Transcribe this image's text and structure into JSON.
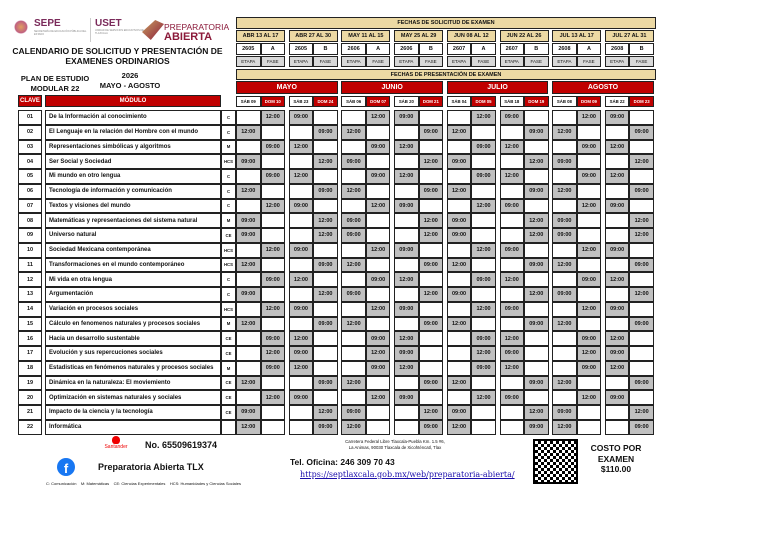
{
  "logos": {
    "sepe": "SEPE",
    "sepe_sub": "SECRETARÍA DE EDUCACIÓN PÚBLICA DEL ESTADO",
    "uset": "USET",
    "uset_sub": "UNIDAD DE SERVICIOS EDUCATIVOS DE TLAXCALA",
    "prep_top": "PREPARATORIA",
    "prep_bottom": "ABIERTA"
  },
  "header": {
    "title_line1": "CALENDARIO DE SOLICITUD Y PRESENTACIÓN DE",
    "title_line2": "EXAMENES ORDINARIOS",
    "plan_line1": "PLAN DE ESTUDIO",
    "plan_line2": "MODULAR 22",
    "year": "2026",
    "period": "MAYO - AGOSTO"
  },
  "solicitud": {
    "title": "FECHAS DE SOLICITUD DE EXAMEN",
    "etapa_label": "ETAPA",
    "fase_label": "FASE",
    "periods": [
      {
        "dates": "ABR 13 AL 17",
        "etapa": "2605",
        "fase": "A"
      },
      {
        "dates": "ABR 27 AL 30",
        "etapa": "2605",
        "fase": "B"
      },
      {
        "dates": "MAY 11 AL 15",
        "etapa": "2606",
        "fase": "A"
      },
      {
        "dates": "MAY 25 AL 29",
        "etapa": "2606",
        "fase": "B"
      },
      {
        "dates": "JUN 08 AL 12",
        "etapa": "2607",
        "fase": "A"
      },
      {
        "dates": "JUN 22 AL 26",
        "etapa": "2607",
        "fase": "B"
      },
      {
        "dates": "JUL 13 AL 17",
        "etapa": "2608",
        "fase": "A"
      },
      {
        "dates": "JUL 27 AL 31",
        "etapa": "2608",
        "fase": "B"
      }
    ]
  },
  "presentacion": {
    "title": "FECHAS DE PRESENTACIÓN DE EXAMEN",
    "months": [
      {
        "name": "MAYO",
        "days": [
          "SÁB 09",
          "DOM 10",
          "SÁB 23",
          "DOM 24"
        ]
      },
      {
        "name": "JUNIO",
        "days": [
          "SÁB 06",
          "DOM 07",
          "SÁB 20",
          "DOM 21"
        ]
      },
      {
        "name": "JULIO",
        "days": [
          "SÁB 04",
          "DOM 05",
          "SÁB 18",
          "DOM 19"
        ]
      },
      {
        "name": "AGOSTO",
        "days": [
          "SÁB 08",
          "DOM 09",
          "SÁB 22",
          "DOM 23"
        ]
      }
    ]
  },
  "table": {
    "clave_header": "CLAVE",
    "modulo_header": "MÓDULO",
    "rows": [
      {
        "clave": "01",
        "modulo": "De la Información al conocimiento",
        "area": "C",
        "times": [
          "",
          "12:00",
          "09:00",
          "",
          "",
          "12:00",
          "09:00",
          "",
          "",
          "12:00",
          "09:00",
          "",
          "",
          "12:00",
          "09:00",
          ""
        ]
      },
      {
        "clave": "02",
        "modulo": "El Lenguaje en la relación del Hombre con el mundo",
        "area": "C",
        "times": [
          "12:00",
          "",
          "",
          "09:00",
          "12:00",
          "",
          "",
          "09:00",
          "12:00",
          "",
          "",
          "09:00",
          "12:00",
          "",
          "",
          "09:00"
        ]
      },
      {
        "clave": "03",
        "modulo": "Representaciones simbólicas y algoritmos",
        "area": "M",
        "times": [
          "",
          "09:00",
          "12:00",
          "",
          "",
          "09:00",
          "12:00",
          "",
          "",
          "09:00",
          "12:00",
          "",
          "",
          "09:00",
          "12:00",
          ""
        ]
      },
      {
        "clave": "04",
        "modulo": "Ser Social y Sociedad",
        "area": "HCS",
        "times": [
          "09:00",
          "",
          "",
          "12:00",
          "09:00",
          "",
          "",
          "12:00",
          "09:00",
          "",
          "",
          "12:00",
          "09:00",
          "",
          "",
          "12:00"
        ]
      },
      {
        "clave": "05",
        "modulo": "Mi mundo en otro lengua",
        "area": "C",
        "times": [
          "",
          "09:00",
          "12:00",
          "",
          "",
          "09:00",
          "12:00",
          "",
          "",
          "09:00",
          "12:00",
          "",
          "",
          "09:00",
          "12:00",
          ""
        ]
      },
      {
        "clave": "06",
        "modulo": "Tecnología de información y comunicación",
        "area": "C",
        "times": [
          "12:00",
          "",
          "",
          "09:00",
          "12:00",
          "",
          "",
          "09:00",
          "12:00",
          "",
          "",
          "09:00",
          "12:00",
          "",
          "",
          "09:00"
        ]
      },
      {
        "clave": "07",
        "modulo": "Textos y visiones del mundo",
        "area": "C",
        "times": [
          "",
          "12:00",
          "09:00",
          "",
          "",
          "12:00",
          "09:00",
          "",
          "",
          "12:00",
          "09:00",
          "",
          "",
          "12:00",
          "09:00",
          ""
        ]
      },
      {
        "clave": "08",
        "modulo": "Matemáticas y representaciones del sistema natural",
        "area": "M",
        "times": [
          "09:00",
          "",
          "",
          "12:00",
          "09:00",
          "",
          "",
          "12:00",
          "09:00",
          "",
          "",
          "12:00",
          "09:00",
          "",
          "",
          "12:00"
        ]
      },
      {
        "clave": "09",
        "modulo": "Universo natural",
        "area": "CE",
        "times": [
          "09:00",
          "",
          "",
          "12:00",
          "09:00",
          "",
          "",
          "12:00",
          "09:00",
          "",
          "",
          "12:00",
          "09:00",
          "",
          "",
          "12:00"
        ]
      },
      {
        "clave": "10",
        "modulo": "Sociedad Mexicana contemporánea",
        "area": "HCS",
        "times": [
          "",
          "12:00",
          "09:00",
          "",
          "",
          "12:00",
          "09:00",
          "",
          "",
          "12:00",
          "09:00",
          "",
          "",
          "12:00",
          "09:00",
          ""
        ]
      },
      {
        "clave": "11",
        "modulo": "Transformaciones en el mundo contemporáneo",
        "area": "HCS",
        "times": [
          "12:00",
          "",
          "",
          "09:00",
          "12:00",
          "",
          "",
          "09:00",
          "12:00",
          "",
          "",
          "09:00",
          "12:00",
          "",
          "",
          "09:00"
        ]
      },
      {
        "clave": "12",
        "modulo": "Mi vida en otra lengua",
        "area": "C",
        "times": [
          "",
          "09:00",
          "12:00",
          "",
          "",
          "09:00",
          "12:00",
          "",
          "",
          "09:00",
          "12:00",
          "",
          "",
          "09:00",
          "12:00",
          ""
        ]
      },
      {
        "clave": "13",
        "modulo": "Argumentación",
        "area": "C",
        "times": [
          "09:00",
          "",
          "",
          "12:00",
          "09:00",
          "",
          "",
          "12:00",
          "09:00",
          "",
          "",
          "12:00",
          "09:00",
          "",
          "",
          "12:00"
        ]
      },
      {
        "clave": "14",
        "modulo": "Variación en procesos sociales",
        "area": "HCS",
        "times": [
          "",
          "12:00",
          "09:00",
          "",
          "",
          "12:00",
          "09:00",
          "",
          "",
          "12:00",
          "09:00",
          "",
          "",
          "12:00",
          "09:00",
          ""
        ]
      },
      {
        "clave": "15",
        "modulo": "Cálculo en fenomenos naturales y procesos sociales",
        "area": "M",
        "times": [
          "12:00",
          "",
          "",
          "09:00",
          "12:00",
          "",
          "",
          "09:00",
          "12:00",
          "",
          "",
          "09:00",
          "12:00",
          "",
          "",
          "09:00"
        ]
      },
      {
        "clave": "16",
        "modulo": "Hacia un desarrollo sustentable",
        "area": "CE",
        "times": [
          "",
          "09:00",
          "12:00",
          "",
          "",
          "09:00",
          "12:00",
          "",
          "",
          "09:00",
          "12:00",
          "",
          "",
          "09:00",
          "12:00",
          ""
        ]
      },
      {
        "clave": "17",
        "modulo": "Evolución y sus repercuciones sociales",
        "area": "CE",
        "times": [
          "",
          "12:00",
          "09:00",
          "",
          "",
          "12:00",
          "09:00",
          "",
          "",
          "12:00",
          "09:00",
          "",
          "",
          "12:00",
          "09:00",
          ""
        ]
      },
      {
        "clave": "18",
        "modulo": "Estadisticas en fenómenos naturales y procesos sociales",
        "area": "M",
        "times": [
          "",
          "09:00",
          "12:00",
          "",
          "",
          "09:00",
          "12:00",
          "",
          "",
          "09:00",
          "12:00",
          "",
          "",
          "09:00",
          "12:00",
          ""
        ]
      },
      {
        "clave": "19",
        "modulo": "Dinámica en la naturaleza: El moviemiento",
        "area": "CE",
        "times": [
          "12:00",
          "",
          "",
          "09:00",
          "12:00",
          "",
          "",
          "09:00",
          "12:00",
          "",
          "",
          "09:00",
          "12:00",
          "",
          "",
          "09:00"
        ]
      },
      {
        "clave": "20",
        "modulo": "Optimización en sistemas naturales y sociales",
        "area": "CE",
        "times": [
          "",
          "12:00",
          "09:00",
          "",
          "",
          "12:00",
          "09:00",
          "",
          "",
          "12:00",
          "09:00",
          "",
          "",
          "12:00",
          "09:00",
          ""
        ]
      },
      {
        "clave": "21",
        "modulo": "Impacto de la ciencia y la tecnología",
        "area": "CE",
        "times": [
          "09:00",
          "",
          "",
          "12:00",
          "09:00",
          "",
          "",
          "12:00",
          "09:00",
          "",
          "",
          "12:00",
          "09:00",
          "",
          "",
          "12:00"
        ]
      },
      {
        "clave": "22",
        "modulo": "Informática",
        "area": "",
        "times": [
          "12:00",
          "",
          "",
          "09:00",
          "12:00",
          "",
          "",
          "09:00",
          "12:00",
          "",
          "",
          "09:00",
          "12:00",
          "",
          "",
          "09:00"
        ]
      }
    ]
  },
  "footer": {
    "bank": "Santander",
    "account": "No. 65509619374",
    "facebook": "Preparatoria Abierta TLX",
    "legend": "C: Comunicación    M: Matemáticas    CE: Ciencias Experimentales    HCS: Humanidades y Ciencias Sociales",
    "address1": "Carretera Federal Libre Tlaxcala-Puebla Km. 1.5 #6,",
    "address2": "La Animas, 90030 Tlaxcala de Xicohténcatl, Tlax",
    "phone": "Tel. Oficina: 246 309 70 43",
    "url": "https://septlaxcala.gob.mx/web/preparatoria-abierta/",
    "cost1": "COSTO POR",
    "cost2": "EXAMEN",
    "cost3": "$110.00"
  },
  "colors": {
    "red": "#c00000",
    "tan": "#ecd9a4",
    "filled": "#c0c0c0",
    "link": "#1a0dab",
    "facebook": "#1877f2"
  }
}
